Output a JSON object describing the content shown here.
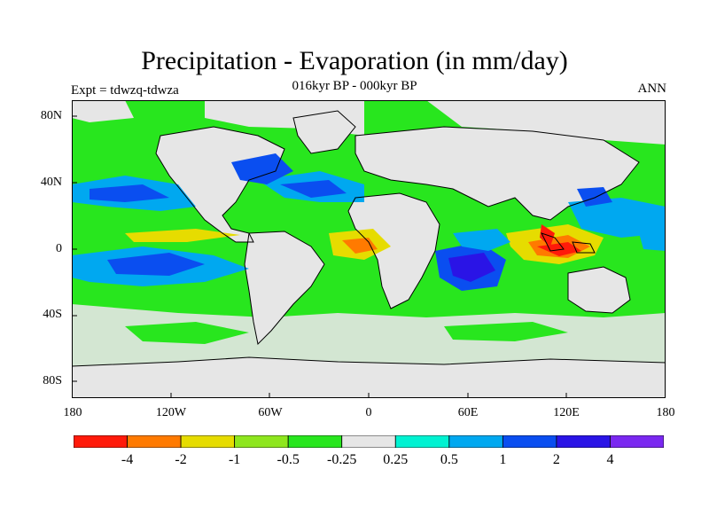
{
  "title": "Precipitation - Evaporation (in mm/day)",
  "subtitle": "016kyr BP - 000kyr BP",
  "left_label": "Expt = tdwzq-tdwza",
  "right_label": "ANN",
  "y_ticks": [
    "80N",
    "40N",
    "0",
    "40S",
    "80S"
  ],
  "x_ticks": [
    "180",
    "120W",
    "60W",
    "0",
    "60E",
    "120E",
    "180"
  ],
  "legend": {
    "colors": [
      "#ff1a0a",
      "#ff7a00",
      "#e6dc00",
      "#8ee61e",
      "#28e61e",
      "#e6e6e6",
      "#00f2d2",
      "#00a8f0",
      "#0a4ef0",
      "#2a14e6",
      "#7a28f0"
    ],
    "labels": [
      "-4",
      "-2",
      "-1",
      "-0.5",
      "-0.25",
      "0.25",
      "0.5",
      "1",
      "2",
      "4"
    ]
  },
  "colors": {
    "land": "#e6e6e6",
    "coastline": "#000000"
  }
}
